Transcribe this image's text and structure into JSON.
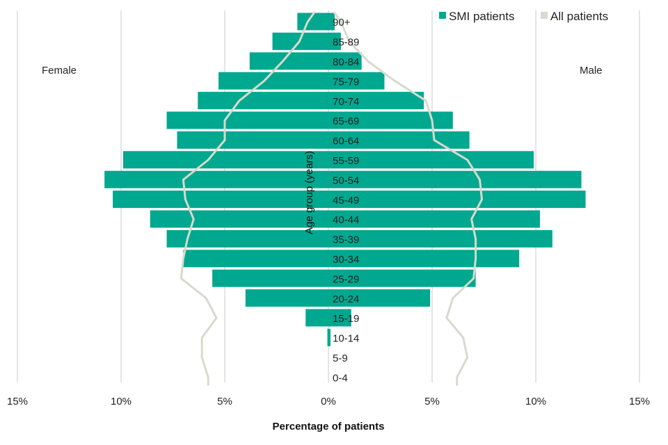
{
  "chart_data": {
    "type": "bar",
    "subtype": "population-pyramid",
    "title": "",
    "xlabel": "Percentage of patients",
    "ylabel": "Age group (years)",
    "left_label": "Female",
    "right_label": "Male",
    "xlim": [
      -15,
      15
    ],
    "xticks": [
      -15,
      -10,
      -5,
      0,
      5,
      10,
      15
    ],
    "xtick_labels": [
      "15%",
      "10%",
      "5%",
      "0%",
      "5%",
      "10%",
      "15%"
    ],
    "grid": true,
    "legend_position": "top-right",
    "categories": [
      "0-4",
      "5-9",
      "10-14",
      "15-19",
      "20-24",
      "25-29",
      "30-34",
      "35-39",
      "40-44",
      "45-49",
      "50-54",
      "55-59",
      "60-64",
      "65-69",
      "70-74",
      "75-79",
      "80-84",
      "85-89",
      "90+"
    ],
    "series": [
      {
        "name": "SMI patients",
        "kind": "bar",
        "color": "#00A88F",
        "female": [
          0,
          0,
          0.05,
          1.1,
          4.0,
          5.6,
          7.0,
          7.8,
          8.6,
          10.4,
          10.8,
          9.9,
          7.3,
          7.8,
          6.3,
          5.3,
          3.8,
          2.7,
          1.5
        ],
        "male": [
          0,
          0,
          0.1,
          1.1,
          4.9,
          7.1,
          9.2,
          10.8,
          10.2,
          12.4,
          12.2,
          9.9,
          6.8,
          6.0,
          4.6,
          2.7,
          1.6,
          0.6,
          0.3
        ]
      },
      {
        "name": "All patients",
        "kind": "line",
        "color": "#D9D9CC",
        "female": [
          5.8,
          6.1,
          6.1,
          5.4,
          5.9,
          7.1,
          7.0,
          6.8,
          6.5,
          6.9,
          7.0,
          5.8,
          5.0,
          5.0,
          4.3,
          3.1,
          2.2,
          1.4,
          1.0
        ],
        "male": [
          6.2,
          6.7,
          6.5,
          5.7,
          6.0,
          7.0,
          7.1,
          7.1,
          6.9,
          7.4,
          7.3,
          6.7,
          5.1,
          5.0,
          4.7,
          3.2,
          1.9,
          1.0,
          0.6
        ]
      }
    ]
  }
}
